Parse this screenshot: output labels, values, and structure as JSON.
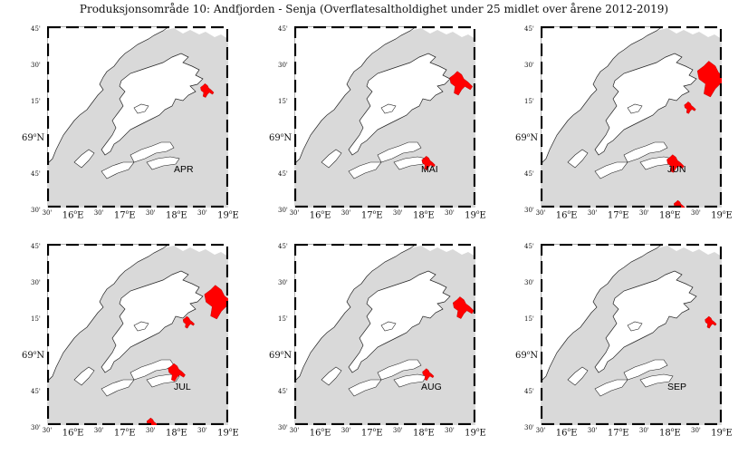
{
  "title": "Produksjonsområde 10: Andfjorden - Senja (Overflatesaltholdighet under 25 midlet over årene 2012-2019)",
  "colors": {
    "land": "#d9d9d9",
    "sea": "#ffffff",
    "low_salinity": "#ff0000",
    "coast": "#222222"
  },
  "x_ticks": [
    {
      "label": "30'",
      "major": false
    },
    {
      "label": "16",
      "suffix": "E",
      "major": true
    },
    {
      "label": "30'",
      "major": false
    },
    {
      "label": "17",
      "suffix": "E",
      "major": true
    },
    {
      "label": "30'",
      "major": false
    },
    {
      "label": "18",
      "suffix": "E",
      "major": true
    },
    {
      "label": "30'",
      "major": false
    },
    {
      "label": "19",
      "suffix": "E",
      "major": true
    }
  ],
  "y_ticks": [
    {
      "label": "45'",
      "major": false
    },
    {
      "label": "30'",
      "major": false
    },
    {
      "label": "15'",
      "major": false
    },
    {
      "label": "69",
      "suffix": "N",
      "major": true
    },
    {
      "label": "45'",
      "major": false
    },
    {
      "label": "30'",
      "major": false
    }
  ],
  "panels": [
    {
      "month": "APR",
      "plumes": [
        {
          "lon": 18.55,
          "lat": 69.32,
          "s": 0.7
        }
      ]
    },
    {
      "month": "MAI",
      "plumes": [
        {
          "lon": 18.65,
          "lat": 69.38,
          "s": 1.2
        },
        {
          "lon": 18.05,
          "lat": 68.82,
          "s": 0.7
        }
      ]
    },
    {
      "month": "JUN",
      "plumes": [
        {
          "lon": 18.75,
          "lat": 69.42,
          "s": 1.8
        },
        {
          "lon": 18.05,
          "lat": 68.82,
          "s": 0.9
        },
        {
          "lon": 18.35,
          "lat": 69.2,
          "s": 0.6
        },
        {
          "lon": 18.15,
          "lat": 68.52,
          "s": 0.6
        }
      ]
    },
    {
      "month": "JUL",
      "plumes": [
        {
          "lon": 18.75,
          "lat": 69.38,
          "s": 1.7
        },
        {
          "lon": 17.95,
          "lat": 68.88,
          "s": 0.9
        },
        {
          "lon": 18.2,
          "lat": 69.22,
          "s": 0.6
        },
        {
          "lon": 17.5,
          "lat": 68.52,
          "s": 0.6
        }
      ]
    },
    {
      "month": "AUG",
      "plumes": [
        {
          "lon": 18.7,
          "lat": 69.33,
          "s": 1.1
        },
        {
          "lon": 18.05,
          "lat": 68.86,
          "s": 0.6
        }
      ]
    },
    {
      "month": "SEP",
      "plumes": [
        {
          "lon": 18.75,
          "lat": 69.22,
          "s": 0.6
        }
      ]
    }
  ]
}
